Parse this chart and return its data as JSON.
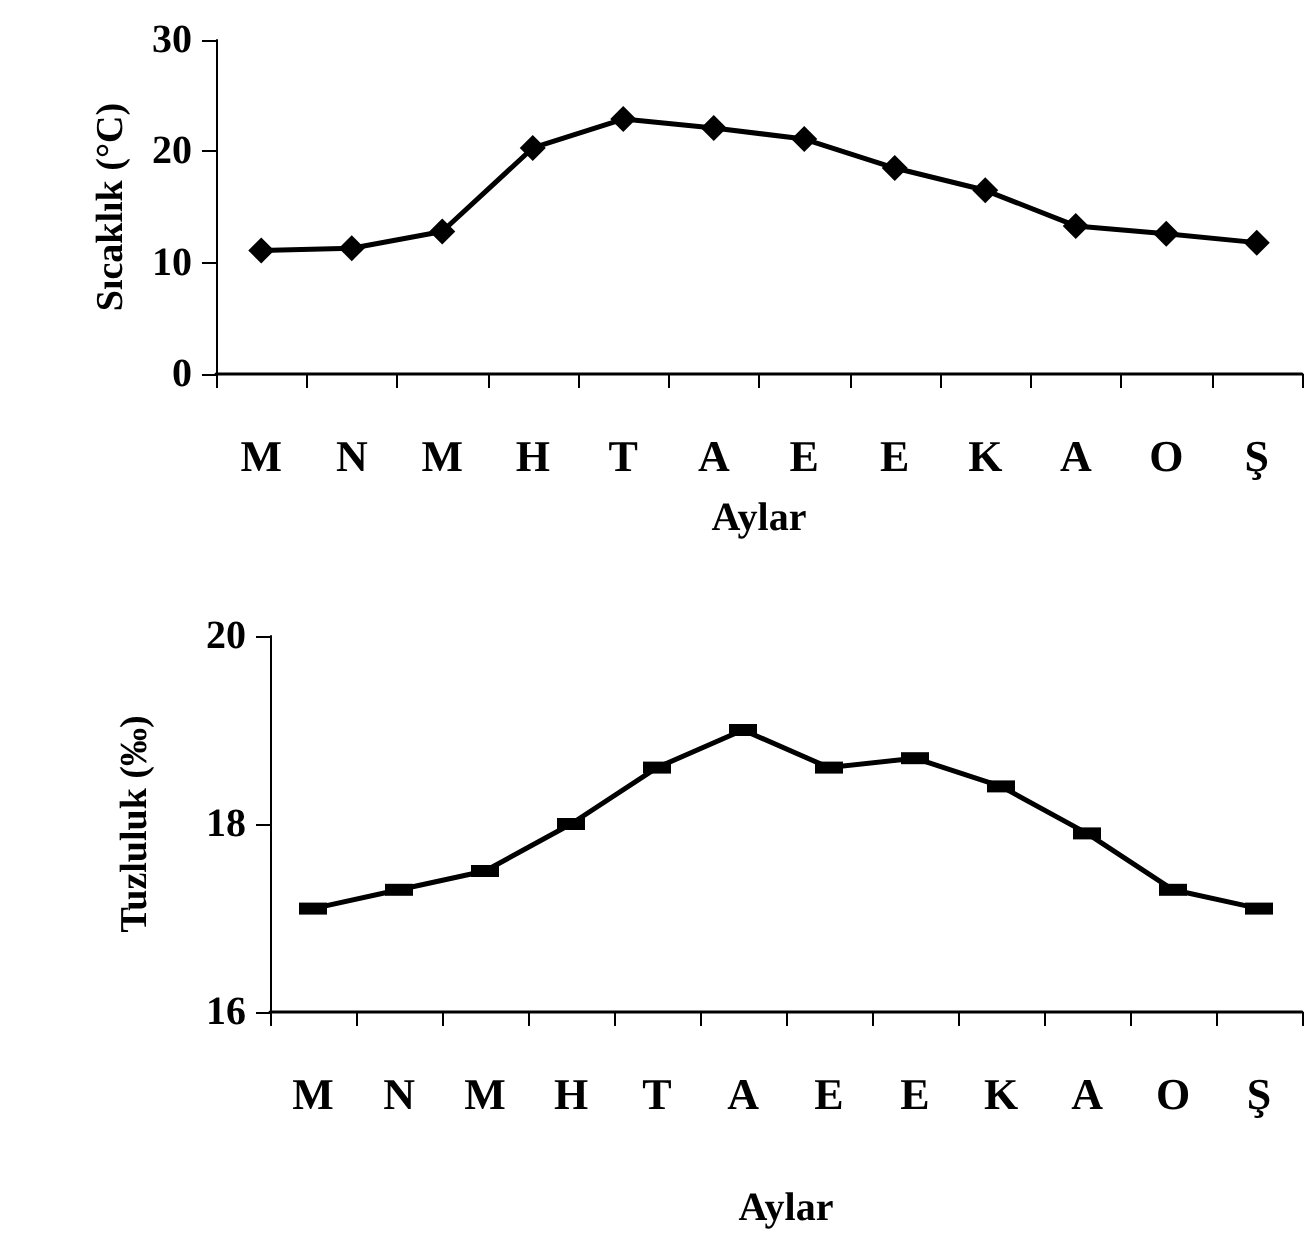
{
  "chart_data": [
    {
      "type": "line",
      "ylabel": "Sıcaklık (°C)",
      "xlabel": "Aylar",
      "categories": [
        "M",
        "N",
        "M",
        "H",
        "T",
        "A",
        "E",
        "E",
        "K",
        "A",
        "O",
        "Ş"
      ],
      "series": [
        {
          "color": "#000000",
          "values": [
            11.1,
            11.3,
            12.8,
            20.3,
            22.9,
            22.1,
            21.1,
            18.5,
            16.5,
            13.3,
            12.6,
            11.8
          ]
        }
      ],
      "ylim": [
        0,
        30
      ],
      "yticks": [
        0,
        10,
        20,
        30
      ],
      "grid": false,
      "marker": "diamond",
      "line_style": "solid"
    },
    {
      "type": "line",
      "ylabel": "Tuzluluk (‰)",
      "xlabel": "Aylar",
      "categories": [
        "M",
        "N",
        "M",
        "H",
        "T",
        "A",
        "E",
        "E",
        "K",
        "A",
        "O",
        "Ş"
      ],
      "series": [
        {
          "color": "#000000",
          "values": [
            17.1,
            17.3,
            17.5,
            18.0,
            18.6,
            19.0,
            18.6,
            18.7,
            18.4,
            17.9,
            17.3,
            17.1
          ]
        }
      ],
      "ylim": [
        16,
        20
      ],
      "yticks": [
        16,
        18,
        20
      ],
      "grid": false,
      "marker": "square",
      "line_style": "solid"
    }
  ]
}
